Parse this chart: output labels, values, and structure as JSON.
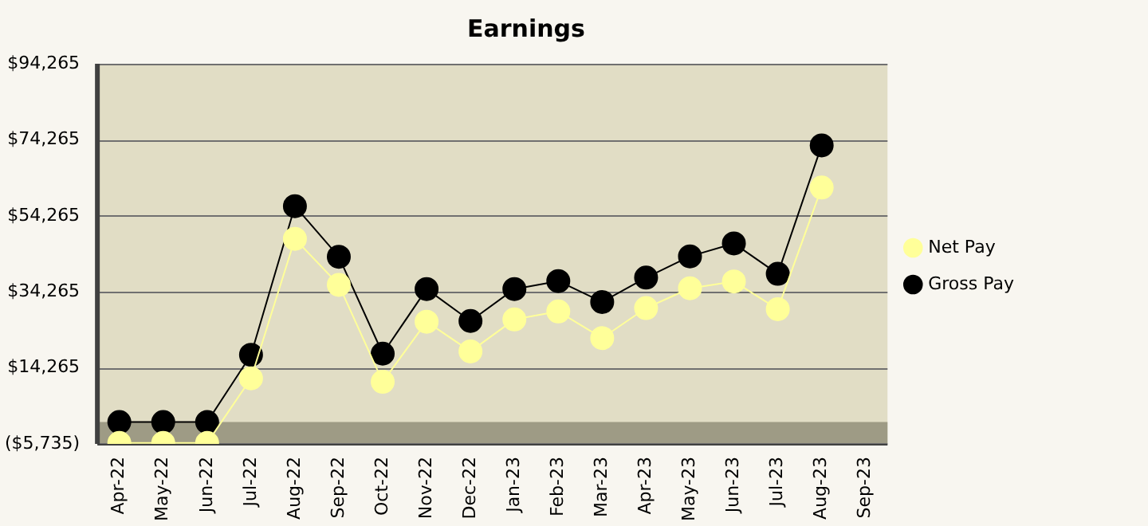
{
  "chart_data": {
    "type": "line",
    "title": "Earnings",
    "categories": [
      "Apr-22",
      "May-22",
      "Jun-22",
      "Jul-22",
      "Aug-22",
      "Sep-22",
      "Oct-22",
      "Nov-22",
      "Dec-22",
      "Jan-23",
      "Feb-23",
      "Mar-23",
      "Apr-23",
      "May-23",
      "Jun-23",
      "Jul-23",
      "Aug-23",
      "Sep-23"
    ],
    "series": [
      {
        "name": "Net Pay",
        "color": "#ffff99",
        "values": [
          -5500,
          -5500,
          -5500,
          11500,
          48200,
          36100,
          10600,
          26400,
          18600,
          27000,
          29100,
          22100,
          30000,
          35200,
          37000,
          29700,
          61700,
          null
        ]
      },
      {
        "name": "Gross Pay",
        "color": "#000000",
        "values": [
          0,
          0,
          0,
          17700,
          56800,
          43500,
          18000,
          35000,
          26600,
          35000,
          37100,
          31600,
          38000,
          43600,
          47000,
          39000,
          72800,
          null
        ]
      }
    ],
    "ylim": [
      -5735,
      94265
    ],
    "yticks": [
      {
        "value": -5735,
        "label": "($5,735)"
      },
      {
        "value": 14265,
        "label": "$14,265"
      },
      {
        "value": 34265,
        "label": "$34,265"
      },
      {
        "value": 54265,
        "label": "$54,265"
      },
      {
        "value": 74265,
        "label": "$74,265"
      },
      {
        "value": 94265,
        "label": "$94,265"
      }
    ],
    "bands": [
      {
        "axis": "y",
        "from": -5735,
        "to": 0,
        "color": "#9e9b85"
      }
    ],
    "grid": "y",
    "legend": "right",
    "marker": "circle",
    "line_style": "solid"
  }
}
